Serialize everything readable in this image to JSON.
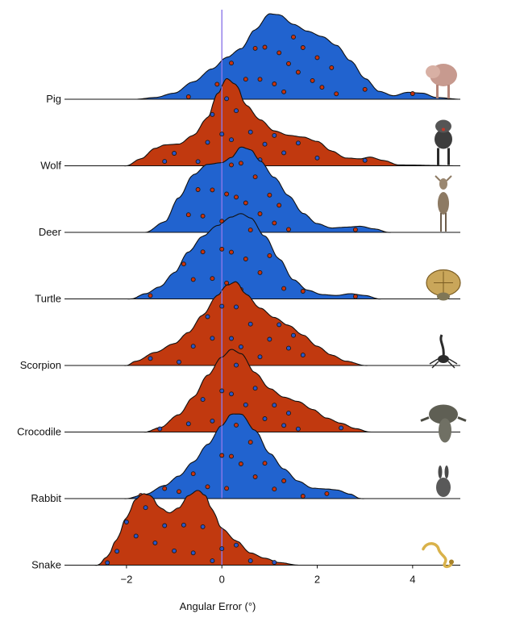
{
  "colors": {
    "blue": "#2163cf",
    "red": "#c1390f",
    "zero_line": "#8c78e8",
    "point_on_blue": "#c9330f",
    "point_on_red": "#2a55c8"
  },
  "chart_data": {
    "type": "ridgeline",
    "title": "",
    "xlabel": "Angular Error (°)",
    "xlim": [
      -3.3,
      5.0
    ],
    "xticks": [
      {
        "value": -2,
        "label": "−2"
      },
      {
        "value": 0,
        "label": "0"
      },
      {
        "value": 2,
        "label": "2"
      },
      {
        "value": 4,
        "label": "4"
      }
    ],
    "reference_line_x": 0,
    "series": [
      {
        "name": "Pig",
        "fill": "blue",
        "icon": "pig-icon",
        "density": [
          [
            -3.3,
            0
          ],
          [
            -1.8,
            0
          ],
          [
            -1.4,
            0.02
          ],
          [
            -1.0,
            0.07
          ],
          [
            -0.6,
            0.2
          ],
          [
            -0.2,
            0.35
          ],
          [
            0.1,
            0.48
          ],
          [
            0.4,
            0.58
          ],
          [
            0.7,
            0.8
          ],
          [
            1.0,
            0.98
          ],
          [
            1.2,
            0.97
          ],
          [
            1.5,
            0.86
          ],
          [
            1.8,
            0.78
          ],
          [
            2.1,
            0.72
          ],
          [
            2.4,
            0.62
          ],
          [
            2.7,
            0.44
          ],
          [
            3.0,
            0.24
          ],
          [
            3.3,
            0.09
          ],
          [
            3.6,
            0.04
          ],
          [
            3.9,
            0.08
          ],
          [
            4.2,
            0.07
          ],
          [
            4.5,
            0.02
          ],
          [
            5.0,
            0
          ]
        ],
        "points": [
          -0.7,
          -0.1,
          0.2,
          0.5,
          0.7,
          0.8,
          0.9,
          1.1,
          1.2,
          1.3,
          1.4,
          1.5,
          1.6,
          1.7,
          1.9,
          2.0,
          2.1,
          2.3,
          2.4,
          3.0,
          4.0
        ]
      },
      {
        "name": "Wolf",
        "fill": "red",
        "icon": "wolf-icon",
        "density": [
          [
            -3.3,
            0
          ],
          [
            -2.0,
            0
          ],
          [
            -1.7,
            0.08
          ],
          [
            -1.4,
            0.2
          ],
          [
            -1.2,
            0.24
          ],
          [
            -0.9,
            0.25
          ],
          [
            -0.6,
            0.35
          ],
          [
            -0.3,
            0.55
          ],
          [
            -0.1,
            0.82
          ],
          [
            0.1,
            1.0
          ],
          [
            0.3,
            0.93
          ],
          [
            0.5,
            0.7
          ],
          [
            0.8,
            0.53
          ],
          [
            1.1,
            0.4
          ],
          [
            1.4,
            0.35
          ],
          [
            1.7,
            0.33
          ],
          [
            2.0,
            0.28
          ],
          [
            2.3,
            0.17
          ],
          [
            2.6,
            0.09
          ],
          [
            2.9,
            0.08
          ],
          [
            3.1,
            0.1
          ],
          [
            3.4,
            0.06
          ],
          [
            3.7,
            0.01
          ],
          [
            5.0,
            0
          ]
        ],
        "points": [
          -1.2,
          -1.0,
          -0.5,
          -0.3,
          -0.2,
          0.0,
          0.1,
          0.2,
          0.3,
          0.4,
          0.6,
          0.8,
          0.9,
          1.1,
          1.3,
          1.6,
          2.0,
          3.0
        ]
      },
      {
        "name": "Deer",
        "fill": "blue",
        "icon": "deer-icon",
        "density": [
          [
            -3.3,
            0
          ],
          [
            -1.6,
            0
          ],
          [
            -1.2,
            0.12
          ],
          [
            -0.9,
            0.4
          ],
          [
            -0.6,
            0.66
          ],
          [
            -0.3,
            0.78
          ],
          [
            0.0,
            0.8
          ],
          [
            0.2,
            0.86
          ],
          [
            0.4,
            0.98
          ],
          [
            0.6,
            0.95
          ],
          [
            0.8,
            0.82
          ],
          [
            1.1,
            0.63
          ],
          [
            1.4,
            0.42
          ],
          [
            1.7,
            0.22
          ],
          [
            2.0,
            0.1
          ],
          [
            2.3,
            0.05
          ],
          [
            2.6,
            0.06
          ],
          [
            2.9,
            0.07
          ],
          [
            3.2,
            0.04
          ],
          [
            3.5,
            0
          ],
          [
            5.0,
            0
          ]
        ],
        "points": [
          -0.7,
          -0.5,
          -0.4,
          -0.2,
          0.0,
          0.1,
          0.2,
          0.3,
          0.4,
          0.5,
          0.7,
          0.8,
          1.0,
          1.1,
          1.2,
          1.4,
          2.8
        ]
      },
      {
        "name": "Turtle",
        "fill": "blue",
        "icon": "turtle-icon",
        "density": [
          [
            -3.3,
            0
          ],
          [
            -1.9,
            0
          ],
          [
            -1.6,
            0.06
          ],
          [
            -1.3,
            0.14
          ],
          [
            -1.0,
            0.3
          ],
          [
            -0.7,
            0.54
          ],
          [
            -0.4,
            0.72
          ],
          [
            -0.1,
            0.84
          ],
          [
            0.2,
            0.94
          ],
          [
            0.4,
            0.98
          ],
          [
            0.6,
            0.93
          ],
          [
            0.9,
            0.72
          ],
          [
            1.2,
            0.46
          ],
          [
            1.5,
            0.22
          ],
          [
            1.8,
            0.1
          ],
          [
            2.1,
            0.05
          ],
          [
            2.4,
            0.04
          ],
          [
            2.7,
            0.06
          ],
          [
            3.0,
            0.04
          ],
          [
            3.3,
            0
          ],
          [
            5.0,
            0
          ]
        ],
        "points": [
          -1.5,
          -0.8,
          -0.6,
          -0.4,
          -0.2,
          0.0,
          0.1,
          0.2,
          0.4,
          0.5,
          0.6,
          0.8,
          1.0,
          1.3,
          1.7,
          2.8
        ]
      },
      {
        "name": "Scorpion",
        "fill": "red",
        "icon": "scorpion-icon",
        "density": [
          [
            -3.3,
            0
          ],
          [
            -2.0,
            0
          ],
          [
            -1.8,
            0.05
          ],
          [
            -1.4,
            0.15
          ],
          [
            -1.0,
            0.25
          ],
          [
            -0.7,
            0.38
          ],
          [
            -0.4,
            0.58
          ],
          [
            -0.1,
            0.8
          ],
          [
            0.1,
            0.92
          ],
          [
            0.3,
            0.96
          ],
          [
            0.5,
            0.82
          ],
          [
            0.8,
            0.66
          ],
          [
            1.1,
            0.55
          ],
          [
            1.4,
            0.46
          ],
          [
            1.7,
            0.35
          ],
          [
            2.0,
            0.22
          ],
          [
            2.3,
            0.12
          ],
          [
            2.6,
            0.05
          ],
          [
            3.0,
            0
          ],
          [
            5.0,
            0
          ]
        ],
        "points": [
          -1.5,
          -0.9,
          -0.6,
          -0.3,
          -0.2,
          0.0,
          0.2,
          0.3,
          0.4,
          0.6,
          0.8,
          1.0,
          1.2,
          1.4,
          1.5,
          1.7
        ]
      },
      {
        "name": "Crocodile",
        "fill": "red",
        "icon": "crocodile-icon",
        "density": [
          [
            -3.3,
            0
          ],
          [
            -1.6,
            0
          ],
          [
            -1.3,
            0.05
          ],
          [
            -0.9,
            0.2
          ],
          [
            -0.6,
            0.4
          ],
          [
            -0.3,
            0.65
          ],
          [
            0.0,
            0.86
          ],
          [
            0.2,
            0.95
          ],
          [
            0.4,
            0.9
          ],
          [
            0.7,
            0.68
          ],
          [
            1.0,
            0.5
          ],
          [
            1.3,
            0.4
          ],
          [
            1.6,
            0.35
          ],
          [
            1.9,
            0.26
          ],
          [
            2.2,
            0.16
          ],
          [
            2.5,
            0.1
          ],
          [
            2.8,
            0.04
          ],
          [
            3.1,
            0
          ],
          [
            5.0,
            0
          ]
        ],
        "points": [
          -1.3,
          -0.7,
          -0.4,
          -0.2,
          0.0,
          0.1,
          0.2,
          0.3,
          0.5,
          0.7,
          0.9,
          1.1,
          1.3,
          1.4,
          1.6,
          2.5
        ]
      },
      {
        "name": "Rabbit",
        "fill": "blue",
        "icon": "rabbit-icon",
        "density": [
          [
            -3.3,
            0
          ],
          [
            -2.0,
            0
          ],
          [
            -1.6,
            0.05
          ],
          [
            -1.2,
            0.15
          ],
          [
            -0.9,
            0.26
          ],
          [
            -0.6,
            0.42
          ],
          [
            -0.3,
            0.62
          ],
          [
            0.0,
            0.84
          ],
          [
            0.2,
            0.97
          ],
          [
            0.4,
            0.97
          ],
          [
            0.7,
            0.78
          ],
          [
            1.0,
            0.52
          ],
          [
            1.3,
            0.34
          ],
          [
            1.6,
            0.2
          ],
          [
            1.9,
            0.12
          ],
          [
            2.2,
            0.11
          ],
          [
            2.4,
            0.1
          ],
          [
            2.7,
            0.05
          ],
          [
            2.9,
            0
          ],
          [
            5.0,
            0
          ]
        ],
        "points": [
          -1.7,
          -1.6,
          -1.2,
          -0.9,
          -0.6,
          -0.3,
          0.0,
          0.1,
          0.2,
          0.3,
          0.4,
          0.6,
          0.7,
          0.9,
          1.1,
          1.3,
          1.7,
          2.2
        ]
      },
      {
        "name": "Snake",
        "fill": "red",
        "icon": "snake-icon",
        "density": [
          [
            -3.3,
            0
          ],
          [
            -2.6,
            0
          ],
          [
            -2.4,
            0.1
          ],
          [
            -2.2,
            0.3
          ],
          [
            -2.0,
            0.55
          ],
          [
            -1.8,
            0.76
          ],
          [
            -1.65,
            0.82
          ],
          [
            -1.5,
            0.8
          ],
          [
            -1.3,
            0.66
          ],
          [
            -1.1,
            0.6
          ],
          [
            -0.9,
            0.66
          ],
          [
            -0.7,
            0.8
          ],
          [
            -0.5,
            0.86
          ],
          [
            -0.35,
            0.8
          ],
          [
            -0.2,
            0.63
          ],
          [
            0.0,
            0.42
          ],
          [
            0.3,
            0.28
          ],
          [
            0.6,
            0.14
          ],
          [
            0.9,
            0.08
          ],
          [
            1.2,
            0.03
          ],
          [
            1.6,
            0
          ],
          [
            5.0,
            0
          ]
        ],
        "points": [
          -2.4,
          -2.2,
          -2.0,
          -1.8,
          -1.6,
          -1.4,
          -1.2,
          -1.0,
          -0.8,
          -0.6,
          -0.4,
          -0.2,
          0.0,
          0.3,
          0.6,
          1.1
        ]
      }
    ]
  }
}
